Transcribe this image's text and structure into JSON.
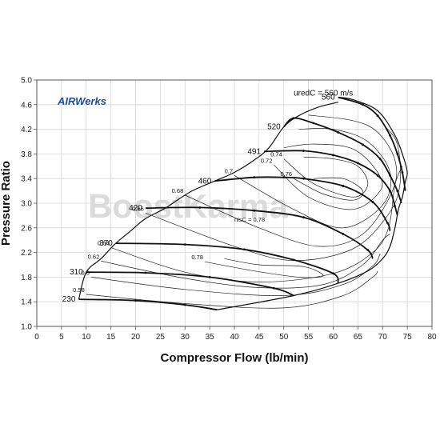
{
  "chart_data": {
    "type": "line",
    "title": "",
    "logo_text": "AIRWerks",
    "watermark": "BoostKarma",
    "xlabel": "Compressor Flow (lb/min)",
    "ylabel": "Pressure Ratio",
    "xlim": [
      0,
      80
    ],
    "ylim": [
      1.0,
      5.0
    ],
    "x_ticks": [
      "0",
      "5",
      "10",
      "15",
      "20",
      "25",
      "30",
      "35",
      "40",
      "45",
      "50",
      "55",
      "60",
      "65",
      "70",
      "75",
      "80"
    ],
    "y_ticks": [
      "1.0",
      "1.4",
      "1.8",
      "2.2",
      "2.6",
      "3.0",
      "3.4",
      "3.8",
      "4.2",
      "4.6",
      "5.0"
    ],
    "grid": true,
    "surge_line": [
      [
        8.5,
        1.44
      ],
      [
        10,
        1.88
      ],
      [
        13,
        2.1
      ],
      [
        16,
        2.35
      ],
      [
        19,
        2.55
      ],
      [
        22,
        2.75
      ],
      [
        26,
        2.92
      ],
      [
        31,
        3.18
      ],
      [
        36,
        3.36
      ],
      [
        40,
        3.5
      ],
      [
        44,
        3.7
      ],
      [
        47,
        3.9
      ],
      [
        50,
        4.24
      ],
      [
        53,
        4.42
      ],
      [
        57,
        4.56
      ],
      [
        61,
        4.64
      ]
    ],
    "choke_line": [
      [
        36.5,
        1.27
      ],
      [
        52,
        1.5
      ],
      [
        61,
        1.7
      ],
      [
        67,
        1.9
      ],
      [
        70,
        2.1
      ],
      [
        71.5,
        2.3
      ],
      [
        72.5,
        2.6
      ],
      [
        73.2,
        2.9
      ],
      [
        74,
        3.1
      ],
      [
        74.6,
        3.35
      ],
      [
        75,
        3.5
      ],
      [
        74.2,
        3.75
      ],
      [
        72.5,
        4.1
      ],
      [
        69,
        4.5
      ],
      [
        64,
        4.68
      ],
      [
        61,
        4.72
      ]
    ],
    "speed_lines": [
      {
        "name": "230",
        "points": [
          [
            8.5,
            1.44
          ],
          [
            20,
            1.42
          ],
          [
            30,
            1.35
          ],
          [
            36.5,
            1.27
          ]
        ]
      },
      {
        "name": "310",
        "points": [
          [
            10,
            1.88
          ],
          [
            22,
            1.87
          ],
          [
            35,
            1.8
          ],
          [
            48,
            1.62
          ],
          [
            52,
            1.5
          ]
        ]
      },
      {
        "name": "370",
        "points": [
          [
            16,
            2.35
          ],
          [
            30,
            2.33
          ],
          [
            42,
            2.25
          ],
          [
            52,
            2.08
          ],
          [
            60,
            1.86
          ],
          [
            61,
            1.7
          ]
        ]
      },
      {
        "name": "420",
        "points": [
          [
            22,
            2.92
          ],
          [
            33,
            2.93
          ],
          [
            44,
            2.88
          ],
          [
            54,
            2.77
          ],
          [
            62,
            2.5
          ],
          [
            67,
            2.24
          ],
          [
            68,
            2.1
          ]
        ]
      },
      {
        "name": "460",
        "points": [
          [
            36,
            3.36
          ],
          [
            44,
            3.42
          ],
          [
            50,
            3.42
          ],
          [
            54,
            3.4
          ],
          [
            62,
            3.28
          ],
          [
            68,
            3.02
          ],
          [
            71,
            2.68
          ],
          [
            71.5,
            2.55
          ]
        ]
      },
      {
        "name": "491",
        "points": [
          [
            46,
            3.84
          ],
          [
            54,
            3.85
          ],
          [
            60,
            3.78
          ],
          [
            65,
            3.65
          ],
          [
            69,
            3.45
          ],
          [
            71.5,
            3.2
          ],
          [
            72.5,
            2.95
          ],
          [
            73,
            2.8
          ]
        ]
      },
      {
        "name": "520",
        "points": [
          [
            50,
            4.24
          ],
          [
            52,
            4.38
          ],
          [
            56,
            4.3
          ],
          [
            61,
            4.15
          ],
          [
            66,
            3.95
          ],
          [
            69.5,
            3.72
          ],
          [
            71.5,
            3.45
          ],
          [
            73,
            3.2
          ],
          [
            73.8,
            3.0
          ]
        ]
      },
      {
        "name": "560",
        "points": [
          [
            61,
            4.72
          ],
          [
            66,
            4.6
          ],
          [
            69,
            4.42
          ],
          [
            71.5,
            4.1
          ],
          [
            73,
            3.8
          ],
          [
            74,
            3.5
          ],
          [
            74.6,
            3.2
          ]
        ]
      }
    ],
    "speed_title": "uredC = 560 m/s",
    "efficiency_islands": [
      {
        "name": "0.58",
        "points": [
          [
            10,
            1.52
          ],
          [
            30,
            1.37
          ],
          [
            50,
            1.3
          ],
          [
            62,
            1.5
          ],
          [
            68,
            1.8
          ],
          [
            69,
            1.9
          ]
        ]
      },
      {
        "name": "0.6",
        "points": [
          [
            11,
            1.8
          ],
          [
            30,
            1.6
          ],
          [
            50,
            1.5
          ],
          [
            62,
            1.68
          ],
          [
            68,
            1.98
          ],
          [
            69.5,
            2.18
          ]
        ]
      },
      {
        "name": "0.62",
        "points": [
          [
            13,
            2.06
          ],
          [
            30,
            1.78
          ],
          [
            45,
            1.63
          ],
          [
            58,
            1.68
          ],
          [
            66,
            2.0
          ],
          [
            70,
            2.4
          ],
          [
            71.5,
            2.5
          ]
        ]
      },
      {
        "name": "0.64",
        "points": [
          [
            15,
            2.28
          ],
          [
            30,
            1.88
          ],
          [
            45,
            1.72
          ],
          [
            60,
            1.86
          ],
          [
            68,
            2.2
          ],
          [
            71.2,
            2.6
          ],
          [
            72.5,
            3.3
          ],
          [
            74,
            3.6
          ]
        ]
      },
      {
        "name": "0.66",
        "points": [
          [
            22,
            2.84
          ],
          [
            40,
            2.3
          ],
          [
            52,
            2.07
          ],
          [
            64,
            2.26
          ],
          [
            71,
            2.8
          ],
          [
            73.5,
            3.3
          ],
          [
            73,
            3.95
          ],
          [
            70.5,
            4.25
          ]
        ]
      },
      {
        "name": "0.68",
        "points": [
          [
            30,
            3.13
          ],
          [
            45,
            2.6
          ],
          [
            57,
            2.3
          ],
          [
            66,
            2.5
          ],
          [
            72,
            3.2
          ],
          [
            72.5,
            3.7
          ],
          [
            69,
            4.15
          ],
          [
            64,
            4.34
          ],
          [
            55,
            4.43
          ]
        ]
      },
      {
        "name": "0.7",
        "points": [
          [
            40,
            3.45
          ],
          [
            52,
            2.9
          ],
          [
            62,
            2.6
          ],
          [
            70,
            2.97
          ],
          [
            71.5,
            3.5
          ],
          [
            67,
            4.0
          ],
          [
            60,
            4.2
          ],
          [
            53,
            4.2
          ]
        ]
      },
      {
        "name": "0.72",
        "points": [
          [
            48,
            3.62
          ],
          [
            55,
            3.1
          ],
          [
            64,
            2.9
          ],
          [
            69.5,
            3.2
          ],
          [
            69,
            3.5
          ],
          [
            64,
            3.88
          ],
          [
            56,
            3.96
          ],
          [
            50,
            3.9
          ]
        ]
      },
      {
        "name": "0.74",
        "points": [
          [
            50,
            3.72
          ],
          [
            56,
            3.32
          ],
          [
            64,
            3.1
          ],
          [
            67,
            3.3
          ],
          [
            65,
            3.6
          ],
          [
            60,
            3.72
          ],
          [
            54,
            3.75
          ]
        ]
      },
      {
        "name": "0.76",
        "points": [
          [
            52,
            3.4
          ],
          [
            58,
            3.15
          ],
          [
            64,
            3.05
          ],
          [
            66,
            3.2
          ],
          [
            62,
            3.4
          ],
          [
            56,
            3.4
          ]
        ]
      },
      {
        "name": "0.78",
        "points": [
          [
            34,
            2.05
          ],
          [
            44,
            1.9
          ],
          [
            53,
            1.8
          ],
          [
            58,
            1.82
          ],
          [
            54,
            1.97
          ],
          [
            45,
            2.0
          ],
          [
            38,
            2.1
          ]
        ]
      }
    ],
    "efficiency_label_prefix": "nisC = 0.78"
  }
}
